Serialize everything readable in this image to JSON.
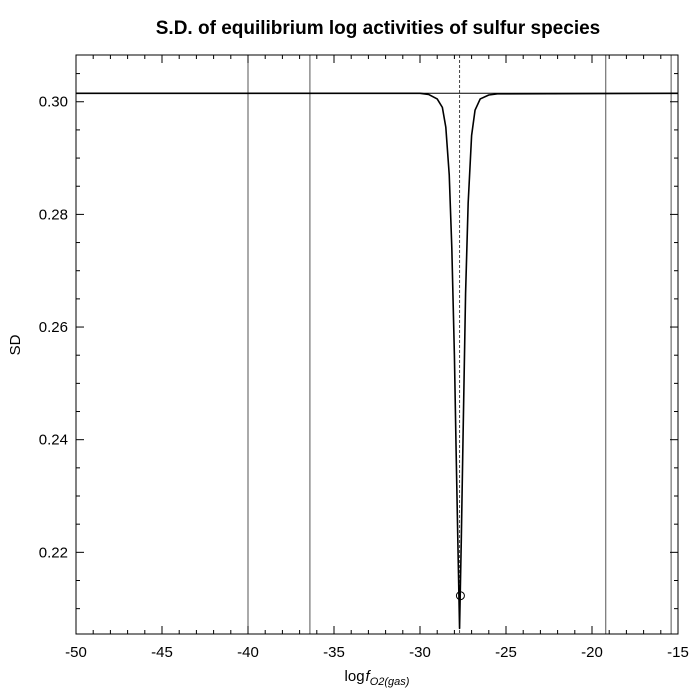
{
  "chart_data": {
    "type": "line",
    "title": "S.D. of equilibrium log activities of sulfur species",
    "xlabel": {
      "log": "log",
      "f": "f",
      "sub": "O2(gas)"
    },
    "ylabel": "SD",
    "xlim": [
      -50,
      -15
    ],
    "ylim": [
      0.2055,
      0.3083
    ],
    "x_ticks": [
      -50,
      -45,
      -40,
      -35,
      -30,
      -25,
      -20,
      -15
    ],
    "x_tick_labels": [
      "-50",
      "-45",
      "-40",
      "-35",
      "-30",
      "-25",
      "-20",
      "-15"
    ],
    "y_ticks": [
      0.22,
      0.24,
      0.26,
      0.28,
      0.3
    ],
    "y_tick_labels": [
      "0.22",
      "0.24",
      "0.26",
      "0.28",
      "0.30"
    ],
    "baseline": 0.3015,
    "series": [
      {
        "x": [
          -50,
          -30,
          -29.5,
          -29,
          -28.7,
          -28.5,
          -28.3,
          -28.15,
          -28.0,
          -27.9,
          -27.8,
          -27.7,
          -27.6,
          -27.5,
          -27.35,
          -27.2,
          -27.0,
          -26.8,
          -26.5,
          -26.0,
          -25.5,
          -15
        ],
        "y": [
          0.3015,
          0.3015,
          0.3013,
          0.3005,
          0.299,
          0.2955,
          0.287,
          0.274,
          0.255,
          0.238,
          0.222,
          0.2065,
          0.222,
          0.24,
          0.266,
          0.282,
          0.294,
          0.2985,
          0.3005,
          0.3012,
          0.3014,
          0.3015
        ],
        "color": "#000000"
      }
    ],
    "vertical_lines": [
      {
        "x": -40.0,
        "style": "solid"
      },
      {
        "x": -36.4,
        "style": "solid"
      },
      {
        "x": -27.7,
        "style": "dashed"
      },
      {
        "x": -19.2,
        "style": "solid"
      },
      {
        "x": -15.4,
        "style": "solid"
      }
    ],
    "marker": {
      "x": -27.65,
      "y": 0.2123,
      "shape": "open-circle"
    },
    "grid": false
  }
}
